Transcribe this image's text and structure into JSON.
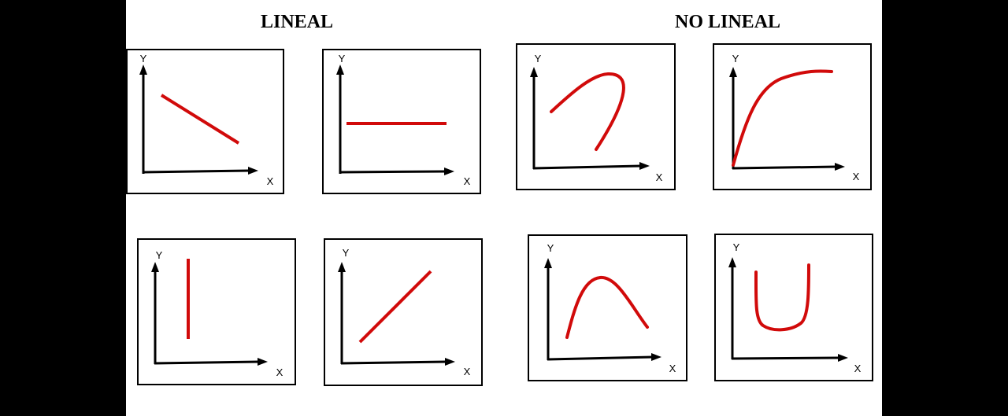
{
  "headings": {
    "linear": "LINEAL",
    "nonlinear": "NO LINEAL"
  },
  "axis": {
    "y_label": "Y",
    "x_label": "X"
  },
  "colors": {
    "curve": "#d10a0a",
    "axis": "#000000",
    "background": "#ffffff",
    "border": "#000000",
    "outside": "#000000"
  },
  "panels": [
    {
      "group": "linear",
      "shape": "descending-line"
    },
    {
      "group": "linear",
      "shape": "horizontal-line"
    },
    {
      "group": "linear",
      "shape": "vertical-line"
    },
    {
      "group": "linear",
      "shape": "ascending-line"
    },
    {
      "group": "nonlinear",
      "shape": "hook-curve"
    },
    {
      "group": "nonlinear",
      "shape": "saturation-curve"
    },
    {
      "group": "nonlinear",
      "shape": "inverted-u-curve"
    },
    {
      "group": "nonlinear",
      "shape": "u-curve"
    }
  ]
}
